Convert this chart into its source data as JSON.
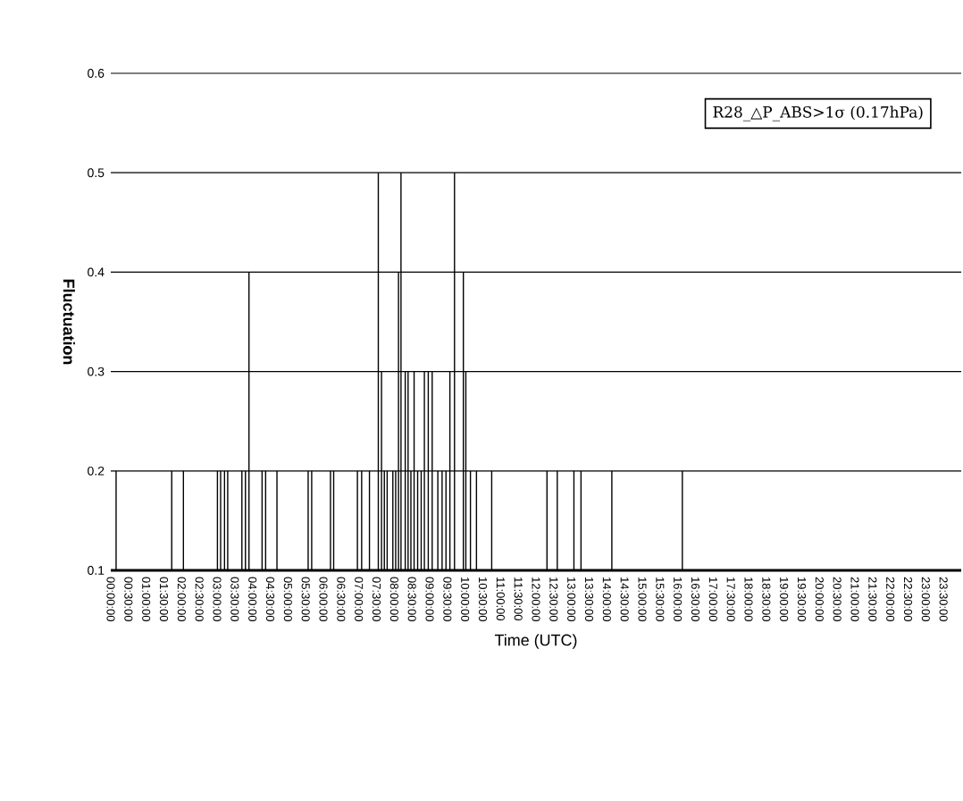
{
  "chart_data": {
    "type": "bar",
    "xlabel": "Time (UTC)",
    "ylabel": "Fluctuation",
    "color": "#000000",
    "annotations": [
      "R28_△P_ABS>1σ (0.17hPa)"
    ],
    "x": [
      0.15,
      1.72,
      2.05,
      3.01,
      3.1,
      3.21,
      3.3,
      3.7,
      3.8,
      3.9,
      4.27,
      4.37,
      4.69,
      5.57,
      5.67,
      6.2,
      6.29,
      6.96,
      7.08,
      7.3,
      7.55,
      7.64,
      7.72,
      7.8,
      7.96,
      8.04,
      8.12,
      8.19,
      8.31,
      8.39,
      8.47,
      8.56,
      8.66,
      8.76,
      8.85,
      8.96,
      9.07,
      9.23,
      9.35,
      9.46,
      9.57,
      9.7,
      9.95,
      10.02,
      10.15,
      10.32,
      10.75,
      12.31,
      12.6,
      13.07,
      13.27,
      14.14,
      16.13
    ],
    "values": [
      0.2,
      0.2,
      0.2,
      0.2,
      0.2,
      0.2,
      0.2,
      0.2,
      0.2,
      0.4,
      0.2,
      0.2,
      0.2,
      0.2,
      0.2,
      0.2,
      0.2,
      0.2,
      0.2,
      0.2,
      0.5,
      0.3,
      0.2,
      0.2,
      0.2,
      0.2,
      0.4,
      0.5,
      0.3,
      0.3,
      0.2,
      0.3,
      0.2,
      0.2,
      0.3,
      0.3,
      0.3,
      0.2,
      0.2,
      0.2,
      0.3,
      0.5,
      0.4,
      0.3,
      0.2,
      0.2,
      0.2,
      0.2,
      0.2,
      0.2,
      0.2,
      0.2,
      0.2
    ],
    "xlim": [
      0,
      24
    ],
    "ylim": [
      0.1,
      0.6
    ],
    "yticks": [
      0.1,
      0.2,
      0.3,
      0.4,
      0.5,
      0.6
    ],
    "grid": "y",
    "xticks": [
      {
        "value": 0,
        "label": "00:00:00"
      },
      {
        "value": 0.5,
        "label": "00:30:00"
      },
      {
        "value": 1,
        "label": "01:00:00"
      },
      {
        "value": 1.5,
        "label": "01:30:00"
      },
      {
        "value": 2,
        "label": "02:00:00"
      },
      {
        "value": 2.5,
        "label": "02:30:00"
      },
      {
        "value": 3,
        "label": "03:00:00"
      },
      {
        "value": 3.5,
        "label": "03:30:00"
      },
      {
        "value": 4,
        "label": "04:00:00"
      },
      {
        "value": 4.5,
        "label": "04:30:00"
      },
      {
        "value": 5,
        "label": "05:00:00"
      },
      {
        "value": 5.5,
        "label": "05:30:00"
      },
      {
        "value": 6,
        "label": "06:00:00"
      },
      {
        "value": 6.5,
        "label": "06:30:00"
      },
      {
        "value": 7,
        "label": "07:00:00"
      },
      {
        "value": 7.5,
        "label": "07:30:00"
      },
      {
        "value": 8,
        "label": "08:00:00"
      },
      {
        "value": 8.5,
        "label": "08:30:00"
      },
      {
        "value": 9,
        "label": "09:00:00"
      },
      {
        "value": 9.5,
        "label": "09:30:00"
      },
      {
        "value": 10,
        "label": "10:00:00"
      },
      {
        "value": 10.5,
        "label": "10:30:00"
      },
      {
        "value": 11,
        "label": "11:00:00"
      },
      {
        "value": 11.5,
        "label": "11:30:00"
      },
      {
        "value": 12,
        "label": "12:00:00"
      },
      {
        "value": 12.5,
        "label": "12:30:00"
      },
      {
        "value": 13,
        "label": "13:00:00"
      },
      {
        "value": 13.5,
        "label": "13:30:00"
      },
      {
        "value": 14,
        "label": "14:00:00"
      },
      {
        "value": 14.5,
        "label": "14:30:00"
      },
      {
        "value": 15,
        "label": "15:00:00"
      },
      {
        "value": 15.5,
        "label": "15:30:00"
      },
      {
        "value": 16,
        "label": "16:00:00"
      },
      {
        "value": 16.5,
        "label": "16:30:00"
      },
      {
        "value": 17,
        "label": "17:00:00"
      },
      {
        "value": 17.5,
        "label": "17:30:00"
      },
      {
        "value": 18,
        "label": "18:00:00"
      },
      {
        "value": 18.5,
        "label": "18:30:00"
      },
      {
        "value": 19,
        "label": "19:00:00"
      },
      {
        "value": 19.5,
        "label": "19:30:00"
      },
      {
        "value": 20,
        "label": "20:00:00"
      },
      {
        "value": 20.5,
        "label": "20:30:00"
      },
      {
        "value": 21,
        "label": "21:00:00"
      },
      {
        "value": 21.5,
        "label": "21:30:00"
      },
      {
        "value": 22,
        "label": "22:00:00"
      },
      {
        "value": 22.5,
        "label": "22:30:00"
      },
      {
        "value": 23,
        "label": "23:00:00"
      },
      {
        "value": 23.5,
        "label": "23:30:00"
      }
    ]
  }
}
